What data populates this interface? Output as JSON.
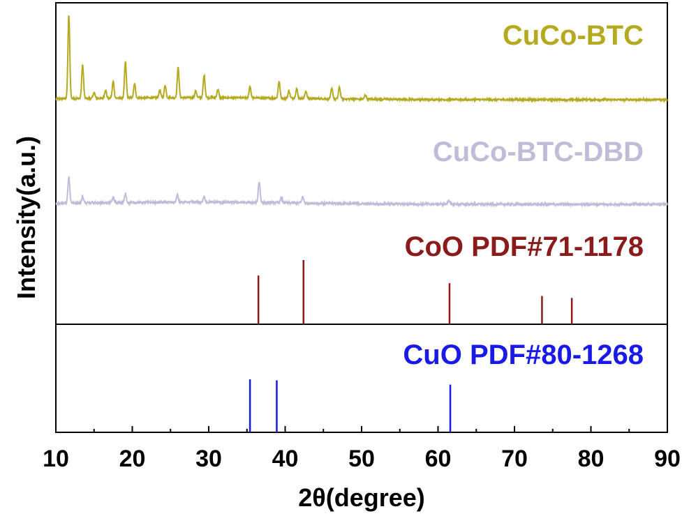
{
  "chart_data": {
    "type": "line",
    "xlabel": "2θ(degree)",
    "ylabel": "Intensity(a.u.)",
    "xlim": [
      10,
      90
    ],
    "x_ticks": [
      "10",
      "20",
      "30",
      "40",
      "50",
      "60",
      "70",
      "80",
      "90"
    ],
    "grid": false,
    "series": [
      {
        "name": "CuCo-BTC",
        "kind": "xrd-pattern",
        "color": "#b5a920",
        "baseline_relative": 0.05,
        "peaks": [
          {
            "x": 11.7,
            "h": 1.0
          },
          {
            "x": 13.5,
            "h": 0.4
          },
          {
            "x": 15.0,
            "h": 0.07
          },
          {
            "x": 16.5,
            "h": 0.1
          },
          {
            "x": 17.5,
            "h": 0.2
          },
          {
            "x": 19.1,
            "h": 0.43
          },
          {
            "x": 20.3,
            "h": 0.17
          },
          {
            "x": 23.6,
            "h": 0.09
          },
          {
            "x": 24.3,
            "h": 0.15
          },
          {
            "x": 26.0,
            "h": 0.36
          },
          {
            "x": 28.3,
            "h": 0.08
          },
          {
            "x": 29.4,
            "h": 0.27
          },
          {
            "x": 31.2,
            "h": 0.1
          },
          {
            "x": 35.4,
            "h": 0.14
          },
          {
            "x": 39.2,
            "h": 0.2
          },
          {
            "x": 40.5,
            "h": 0.09
          },
          {
            "x": 41.5,
            "h": 0.12
          },
          {
            "x": 42.7,
            "h": 0.09
          },
          {
            "x": 46.1,
            "h": 0.12
          },
          {
            "x": 47.1,
            "h": 0.14
          },
          {
            "x": 50.5,
            "h": 0.05
          }
        ]
      },
      {
        "name": "CuCo-BTC-DBD",
        "kind": "xrd-pattern",
        "color": "#c0bcd8",
        "baseline_relative": 0.04,
        "peaks": [
          {
            "x": 11.7,
            "h": 0.25
          },
          {
            "x": 13.5,
            "h": 0.06
          },
          {
            "x": 17.5,
            "h": 0.05
          },
          {
            "x": 19.1,
            "h": 0.08
          },
          {
            "x": 25.9,
            "h": 0.07
          },
          {
            "x": 29.4,
            "h": 0.05
          },
          {
            "x": 36.6,
            "h": 0.2
          },
          {
            "x": 39.5,
            "h": 0.05
          },
          {
            "x": 42.3,
            "h": 0.06
          },
          {
            "x": 61.4,
            "h": 0.04
          }
        ]
      },
      {
        "name": "CoO PDF#71-1178",
        "kind": "reference-sticks",
        "color": "#8b1a1a",
        "x": [
          36.5,
          42.4,
          61.5,
          73.6,
          77.5
        ],
        "values": [
          76,
          100,
          64,
          44,
          41
        ]
      },
      {
        "name": "CuO PDF#80-1268",
        "kind": "reference-sticks",
        "color": "#1a1ae6",
        "x": [
          35.4,
          38.9,
          61.6
        ],
        "values": [
          100,
          98,
          90
        ]
      }
    ]
  }
}
